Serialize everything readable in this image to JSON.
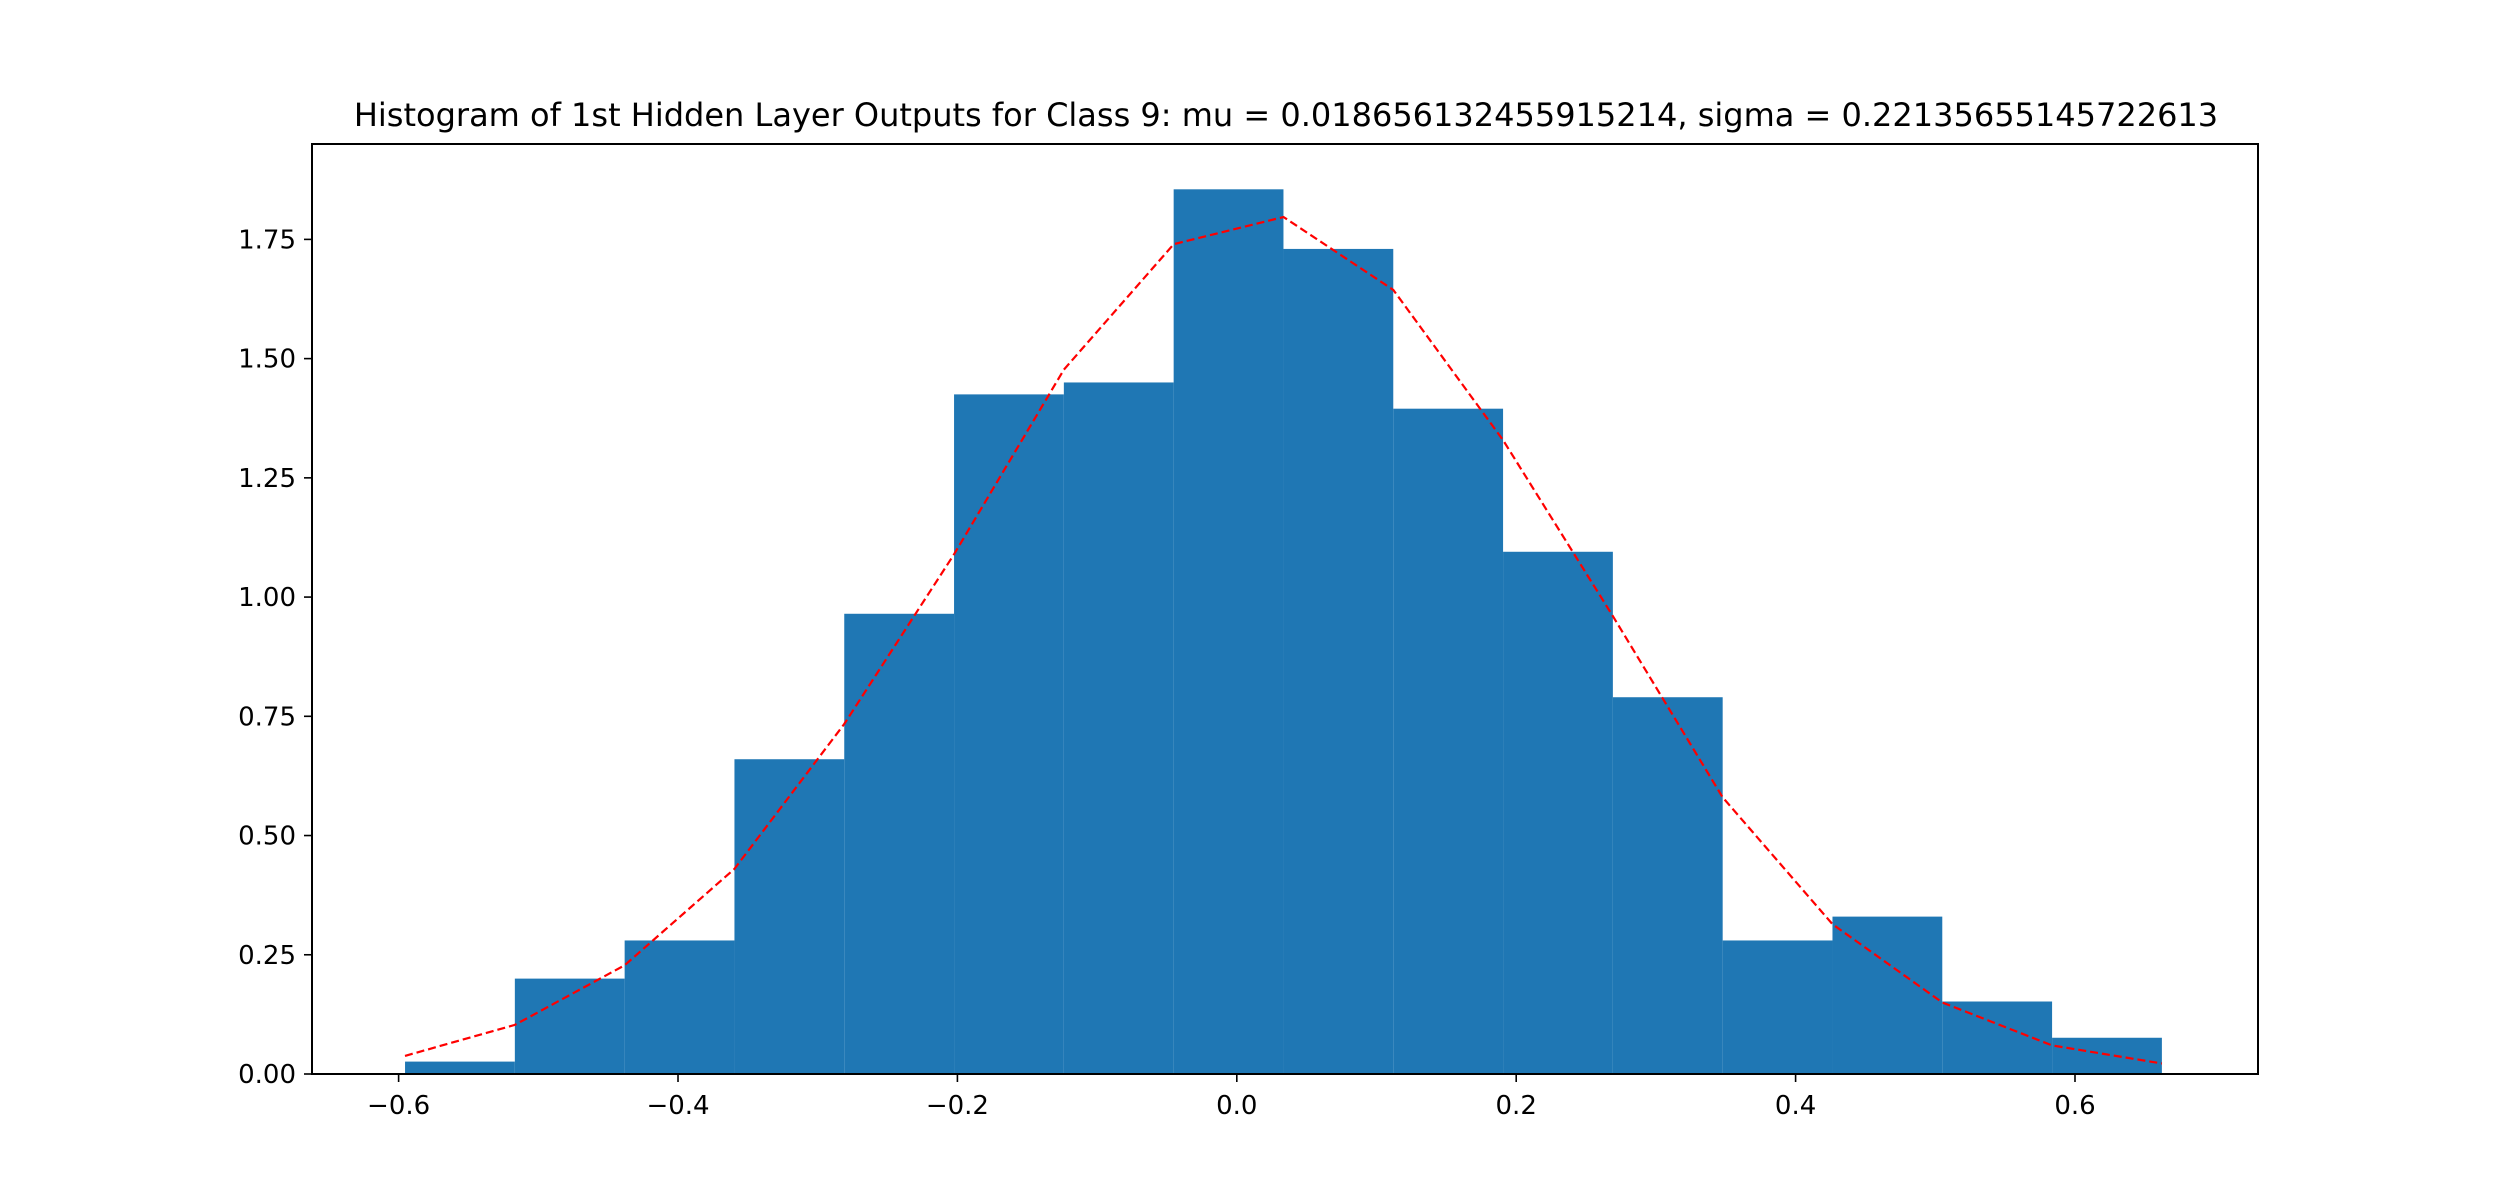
{
  "chart_data": {
    "type": "bar",
    "title": "Histogram of 1st Hidden Layer Outputs  for Class 9: mu = 0.018656132455915214, sigma = 0.22135655145722613",
    "xlabel": "",
    "ylabel": "",
    "xlim": [
      -0.662,
      0.731
    ],
    "ylim": [
      0,
      1.95
    ],
    "grid": false,
    "bins": [
      {
        "x0": -0.5954,
        "x1": -0.5168,
        "value": 0.026
      },
      {
        "x0": -0.5168,
        "x1": -0.4382,
        "value": 0.2
      },
      {
        "x0": -0.4382,
        "x1": -0.3596,
        "value": 0.28
      },
      {
        "x0": -0.3596,
        "x1": -0.281,
        "value": 0.66
      },
      {
        "x0": -0.281,
        "x1": -0.2024,
        "value": 0.965
      },
      {
        "x0": -0.2024,
        "x1": -0.1238,
        "value": 1.425
      },
      {
        "x0": -0.1238,
        "x1": -0.0452,
        "value": 1.45
      },
      {
        "x0": -0.0452,
        "x1": 0.0334,
        "value": 1.855
      },
      {
        "x0": 0.0334,
        "x1": 0.112,
        "value": 1.73
      },
      {
        "x0": 0.112,
        "x1": 0.1906,
        "value": 1.395
      },
      {
        "x0": 0.1906,
        "x1": 0.2692,
        "value": 1.095
      },
      {
        "x0": 0.2692,
        "x1": 0.3478,
        "value": 0.79
      },
      {
        "x0": 0.3478,
        "x1": 0.4264,
        "value": 0.28
      },
      {
        "x0": 0.4264,
        "x1": 0.505,
        "value": 0.33
      },
      {
        "x0": 0.505,
        "x1": 0.5836,
        "value": 0.152
      },
      {
        "x0": 0.5836,
        "x1": 0.6622,
        "value": 0.076
      }
    ],
    "fit_curve": {
      "style": "dashed",
      "color": "#ff0000",
      "x": [
        -0.5954,
        -0.5168,
        -0.4382,
        -0.3596,
        -0.281,
        -0.2024,
        -0.1238,
        -0.0452,
        0.0334,
        0.112,
        0.1906,
        0.2692,
        0.3478,
        0.4264,
        0.505,
        0.5836,
        0.6622
      ],
      "y": [
        0.038,
        0.103,
        0.228,
        0.43,
        0.734,
        1.09,
        1.477,
        1.74,
        1.797,
        1.644,
        1.329,
        0.96,
        0.58,
        0.314,
        0.15,
        0.06,
        0.022
      ]
    },
    "xticks": [
      {
        "value": -0.6,
        "label": "−0.6"
      },
      {
        "value": -0.4,
        "label": "−0.4"
      },
      {
        "value": -0.2,
        "label": "−0.2"
      },
      {
        "value": 0.0,
        "label": "0.0"
      },
      {
        "value": 0.2,
        "label": "0.2"
      },
      {
        "value": 0.4,
        "label": "0.4"
      },
      {
        "value": 0.6,
        "label": "0.6"
      }
    ],
    "yticks": [
      {
        "value": 0.0,
        "label": "0.00"
      },
      {
        "value": 0.25,
        "label": "0.25"
      },
      {
        "value": 0.5,
        "label": "0.50"
      },
      {
        "value": 0.75,
        "label": "0.75"
      },
      {
        "value": 1.0,
        "label": "1.00"
      },
      {
        "value": 1.25,
        "label": "1.25"
      },
      {
        "value": 1.5,
        "label": "1.50"
      },
      {
        "value": 1.75,
        "label": "1.75"
      }
    ],
    "bar_color": "#1f77b4"
  }
}
